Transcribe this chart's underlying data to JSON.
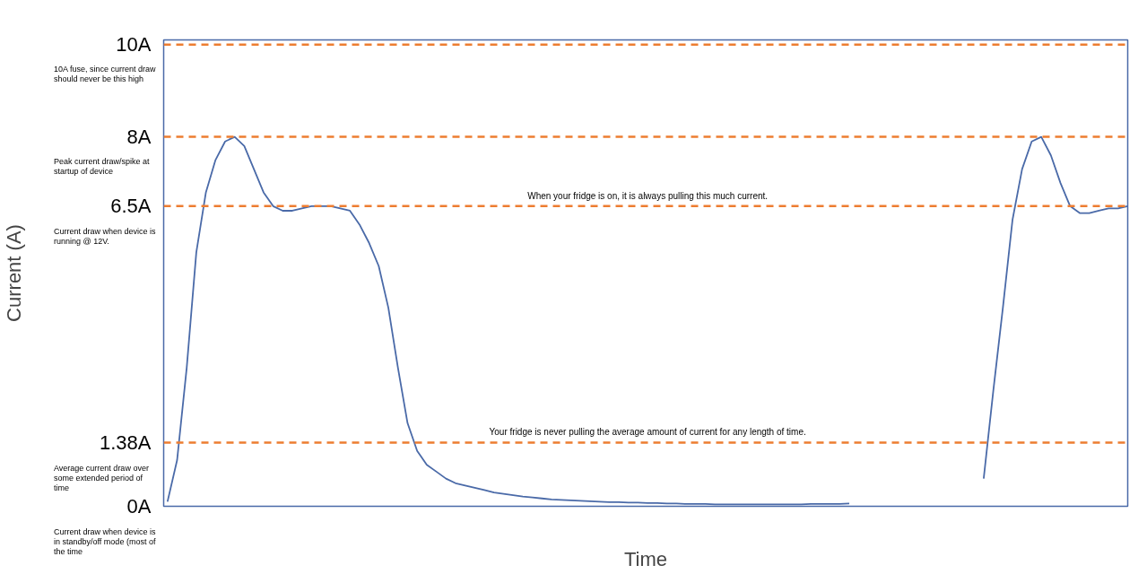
{
  "chart_data": {
    "type": "line",
    "xlabel": "Time",
    "ylabel": "Current (A)",
    "categories": [
      null,
      null,
      null,
      null,
      null,
      null,
      null,
      null,
      null,
      null,
      null,
      null,
      null,
      null,
      null,
      null,
      null,
      null,
      null,
      null,
      null,
      null,
      null,
      null,
      null,
      null,
      null,
      null,
      null,
      null,
      null,
      null,
      null,
      null,
      null,
      null,
      null,
      null,
      null,
      null,
      null,
      null,
      null,
      null,
      null,
      null,
      null,
      null,
      null,
      null,
      null,
      null,
      null,
      null,
      null,
      null,
      null,
      null,
      null,
      null,
      null,
      null,
      null,
      null,
      null,
      null,
      null,
      null,
      null,
      null,
      null,
      null,
      null,
      null,
      null,
      null,
      null,
      null,
      null,
      null,
      null,
      null,
      null,
      null,
      null,
      null,
      null,
      null,
      null,
      null,
      null,
      null,
      null,
      null,
      null,
      null,
      null,
      null,
      null,
      null,
      null
    ],
    "series": [
      {
        "color": "#4a6aa8",
        "values": [
          0.1,
          1.0,
          3.0,
          5.5,
          6.8,
          7.5,
          7.9,
          8.0,
          7.8,
          7.3,
          6.8,
          6.5,
          6.4,
          6.4,
          6.45,
          6.5,
          6.5,
          6.5,
          6.45,
          6.4,
          6.1,
          5.7,
          5.2,
          4.3,
          3.0,
          1.8,
          1.2,
          0.9,
          0.75,
          0.6,
          0.5,
          0.45,
          0.4,
          0.35,
          0.3,
          0.27,
          0.24,
          0.21,
          0.19,
          0.17,
          0.15,
          0.14,
          0.13,
          0.12,
          0.11,
          0.1,
          0.09,
          0.09,
          0.08,
          0.08,
          0.07,
          0.07,
          0.06,
          0.06,
          0.05,
          0.05,
          0.05,
          0.04,
          0.04,
          0.04,
          0.04,
          0.04,
          0.04,
          0.04,
          0.04,
          0.04,
          0.04,
          0.05,
          0.05,
          0.05,
          0.05,
          0.06,
          null,
          null,
          null,
          null,
          null,
          null,
          null,
          null,
          null,
          null,
          null,
          null,
          null,
          null,
          null,
          null,
          null,
          null,
          null,
          null,
          null,
          null,
          null,
          null,
          null,
          null,
          null,
          null,
          null
        ]
      },
      {
        "color": "#4a6aa8",
        "values": [
          null,
          null,
          null,
          null,
          null,
          null,
          null,
          null,
          null,
          null,
          null,
          null,
          null,
          null,
          null,
          null,
          null,
          null,
          null,
          null,
          null,
          null,
          null,
          null,
          null,
          null,
          null,
          null,
          null,
          null,
          null,
          null,
          null,
          null,
          null,
          null,
          null,
          null,
          null,
          null,
          null,
          null,
          null,
          null,
          null,
          null,
          null,
          null,
          null,
          null,
          null,
          null,
          null,
          null,
          null,
          null,
          null,
          null,
          null,
          null,
          null,
          null,
          null,
          null,
          null,
          null,
          null,
          null,
          null,
          null,
          null,
          null,
          null,
          null,
          null,
          null,
          null,
          null,
          null,
          null,
          null,
          null,
          null,
          null,
          null,
          0.6,
          2.5,
          4.3,
          6.2,
          7.3,
          7.9,
          8.0,
          7.6,
          7.0,
          6.5,
          6.35,
          6.35,
          6.4,
          6.45,
          6.45,
          6.5
        ]
      }
    ],
    "ylim": [
      0,
      10.1
    ],
    "yticks": [
      {
        "value": 10,
        "label": "10A"
      },
      {
        "value": 8,
        "label": "8A"
      },
      {
        "value": 6.5,
        "label": "6.5A"
      },
      {
        "value": 1.38,
        "label": "1.38A"
      },
      {
        "value": 0,
        "label": "0A"
      }
    ],
    "tick_labels": "y",
    "grid": false,
    "line_style": "solid",
    "marker": "none",
    "ref_lines": [
      {
        "axis": "y",
        "value": 10,
        "color": "#ed7d31",
        "line_style": "dashed"
      },
      {
        "axis": "y",
        "value": 8,
        "color": "#ed7d31",
        "line_style": "dashed"
      },
      {
        "axis": "y",
        "value": 6.5,
        "color": "#ed7d31",
        "line_style": "dashed",
        "label": "When your fridge is on, it is always pulling this much current."
      },
      {
        "axis": "y",
        "value": 1.38,
        "color": "#ed7d31",
        "line_style": "dashed",
        "label": "Your fridge is never pulling the average amount of current for any length of time."
      }
    ],
    "annotations": [
      "10A fuse, since current draw should never be this high",
      "Peak current draw/spike at startup of device",
      "Current draw when device is running @ 12V.",
      "Average current draw over some extended period of time",
      "Current draw when device is in standby/off mode (most of the time"
    ]
  }
}
